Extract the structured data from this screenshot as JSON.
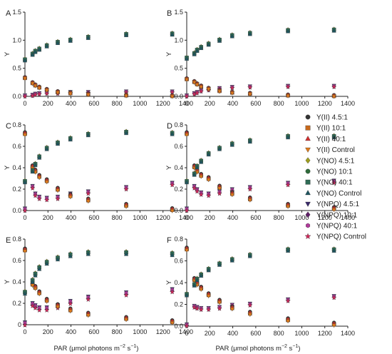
{
  "figure": {
    "x_label_main": "PAR (μmol photons m",
    "x_label_exp1": "−2",
    "x_label_mid": " s",
    "x_label_exp2": "−1",
    "x_label_end": ")"
  },
  "legend": [
    {
      "label": "Y(II) 4.5:1",
      "marker": "circle",
      "color": "#333333"
    },
    {
      "label": "Y(II) 10:1",
      "marker": "square",
      "color": "#C8691C"
    },
    {
      "label": "Y(II) 40:1",
      "marker": "triangle-up",
      "color": "#D32F2F"
    },
    {
      "label": "Y(II) Control",
      "marker": "triangle-down",
      "color": "#E07B1A"
    },
    {
      "label": "Y(NO) 4.5:1",
      "marker": "diamond",
      "color": "#9E9E1E"
    },
    {
      "label": "Y(NO) 10:1",
      "marker": "circle",
      "color": "#2E6B3A"
    },
    {
      "label": "Y(NO) 40:1",
      "marker": "square",
      "color": "#2E6B55"
    },
    {
      "label": "Y(NO) Control",
      "marker": "triangle-up",
      "color": "#1E5560"
    },
    {
      "label": "Y(NPQ) 4.5:1",
      "marker": "triangle-down",
      "color": "#3A2A6B"
    },
    {
      "label": "Y(NPQ) 10:1",
      "marker": "diamond",
      "color": "#5E1E66"
    },
    {
      "label": "Y(NPQ) 40:1",
      "marker": "hexagon",
      "color": "#B03A9A"
    },
    {
      "label": "Y(NPQ) Control",
      "marker": "star",
      "color": "#D0285A"
    }
  ],
  "chart_data": [
    {
      "type": "scatter",
      "panel": "A",
      "xlabel": "",
      "ylabel": "Y",
      "xlim": [
        0,
        1400
      ],
      "ylim": [
        0,
        1.5
      ],
      "xticks": [
        0,
        200,
        400,
        600,
        800,
        1000,
        1200,
        1400
      ],
      "yticks": [
        0.0,
        0.5,
        1.0,
        1.5
      ],
      "ytick_labels": [
        "0.0",
        "0.5",
        "1.0",
        "1.5"
      ],
      "x": [
        0,
        66,
        90,
        125,
        190,
        285,
        395,
        550,
        880,
        1280
      ],
      "groups": [
        {
          "kind": "NO",
          "values": [
            0.65,
            0.75,
            0.8,
            0.84,
            0.9,
            0.96,
            1.0,
            1.05,
            1.1,
            1.11
          ],
          "spread": 0.025
        },
        {
          "kind": "II",
          "values": [
            0.33,
            0.24,
            0.2,
            0.16,
            0.12,
            0.08,
            0.06,
            0.04,
            0.02,
            0.01
          ],
          "spread": 0.02
        },
        {
          "kind": "NPQ",
          "values": [
            0.01,
            0.02,
            0.04,
            0.05,
            0.06,
            0.06,
            0.07,
            0.07,
            0.08,
            0.08
          ],
          "spread": 0.02
        }
      ]
    },
    {
      "type": "scatter",
      "panel": "B",
      "xlabel": "",
      "ylabel": "Y",
      "xlim": [
        0,
        1400
      ],
      "ylim": [
        0,
        1.5
      ],
      "xticks": [
        0,
        200,
        400,
        600,
        800,
        1000,
        1200,
        1400
      ],
      "yticks": [
        0.0,
        0.5,
        1.0,
        1.5
      ],
      "ytick_labels": [
        "0.0",
        "0.5",
        "1.0",
        "1.5"
      ],
      "x": [
        0,
        66,
        90,
        125,
        190,
        285,
        395,
        550,
        880,
        1280
      ],
      "groups": [
        {
          "kind": "NO",
          "values": [
            0.68,
            0.76,
            0.82,
            0.87,
            0.93,
            1.0,
            1.08,
            1.12,
            1.17,
            1.18
          ],
          "spread": 0.025
        },
        {
          "kind": "II",
          "values": [
            0.31,
            0.26,
            0.22,
            0.18,
            0.14,
            0.1,
            0.07,
            0.05,
            0.02,
            0.01
          ],
          "spread": 0.02
        },
        {
          "kind": "NPQ",
          "values": [
            0.01,
            0.05,
            0.07,
            0.1,
            0.12,
            0.14,
            0.16,
            0.17,
            0.18,
            0.18
          ],
          "spread": 0.02
        }
      ]
    },
    {
      "type": "scatter",
      "panel": "C",
      "xlabel": "",
      "ylabel": "Y",
      "xlim": [
        0,
        1400
      ],
      "ylim": [
        0,
        0.8
      ],
      "xticks": [
        0,
        200,
        400,
        600,
        800,
        1000,
        1200,
        1400
      ],
      "yticks": [
        0.0,
        0.2,
        0.4,
        0.6,
        0.8
      ],
      "ytick_labels": [
        "0.0",
        "0.2",
        "0.4",
        "0.6",
        "0.8"
      ],
      "x": [
        0,
        66,
        90,
        125,
        190,
        285,
        395,
        550,
        880,
        1280
      ],
      "groups": [
        {
          "kind": "NO",
          "values": [
            0.27,
            0.37,
            0.43,
            0.5,
            0.58,
            0.63,
            0.67,
            0.71,
            0.73,
            0.72
          ],
          "spread": 0.015
        },
        {
          "kind": "II",
          "values": [
            0.72,
            0.41,
            0.37,
            0.32,
            0.28,
            0.2,
            0.14,
            0.1,
            0.05,
            0.01
          ],
          "spread": 0.02
        },
        {
          "kind": "NPQ",
          "values": [
            0.01,
            0.22,
            0.15,
            0.12,
            0.11,
            0.12,
            0.15,
            0.17,
            0.21,
            0.25
          ],
          "spread": 0.02
        }
      ]
    },
    {
      "type": "scatter",
      "panel": "D",
      "xlabel": "",
      "ylabel": "Y",
      "xlim": [
        0,
        1400
      ],
      "ylim": [
        0,
        0.8
      ],
      "xticks": [
        0,
        200,
        400,
        600,
        800,
        1000,
        1200,
        1400
      ],
      "yticks": [
        0.0,
        0.2,
        0.4,
        0.6,
        0.8
      ],
      "ytick_labels": [
        "0.0",
        "0.2",
        "0.4",
        "0.6",
        "0.8"
      ],
      "x": [
        0,
        66,
        90,
        125,
        190,
        285,
        395,
        550,
        880,
        1280
      ],
      "groups": [
        {
          "kind": "NO",
          "values": [
            0.27,
            0.34,
            0.41,
            0.46,
            0.53,
            0.58,
            0.62,
            0.65,
            0.69,
            0.69
          ],
          "spread": 0.015
        },
        {
          "kind": "II",
          "values": [
            0.72,
            0.41,
            0.37,
            0.33,
            0.3,
            0.22,
            0.16,
            0.11,
            0.05,
            0.02
          ],
          "spread": 0.02
        },
        {
          "kind": "NPQ",
          "values": [
            0.01,
            0.22,
            0.19,
            0.16,
            0.15,
            0.17,
            0.19,
            0.21,
            0.25,
            0.27
          ],
          "spread": 0.02
        }
      ]
    },
    {
      "type": "scatter",
      "panel": "E",
      "xlabel": "PAR",
      "ylabel": "Y",
      "xlim": [
        0,
        1400
      ],
      "ylim": [
        0,
        0.8
      ],
      "xticks": [
        0,
        200,
        400,
        600,
        800,
        1000,
        1200,
        1400
      ],
      "yticks": [
        0.0,
        0.2,
        0.4,
        0.6,
        0.8
      ],
      "ytick_labels": [
        "0",
        "0.2",
        "0.4",
        "0.6",
        "0.8"
      ],
      "x": [
        0,
        66,
        90,
        125,
        190,
        285,
        395,
        550,
        880,
        1280
      ],
      "groups": [
        {
          "kind": "NO",
          "values": [
            0.3,
            0.41,
            0.47,
            0.53,
            0.58,
            0.62,
            0.65,
            0.67,
            0.67,
            0.66
          ],
          "spread": 0.02
        },
        {
          "kind": "II",
          "values": [
            0.7,
            0.38,
            0.35,
            0.3,
            0.23,
            0.18,
            0.14,
            0.1,
            0.06,
            0.03
          ],
          "spread": 0.02
        },
        {
          "kind": "NPQ",
          "values": [
            0.01,
            0.19,
            0.17,
            0.15,
            0.15,
            0.17,
            0.21,
            0.25,
            0.29,
            0.32
          ],
          "spread": 0.025
        }
      ]
    },
    {
      "type": "scatter",
      "panel": "F",
      "xlabel": "PAR",
      "ylabel": "Y",
      "xlim": [
        0,
        1400
      ],
      "ylim": [
        0,
        0.8
      ],
      "xticks": [
        0,
        200,
        400,
        600,
        800,
        1000,
        1200,
        1400
      ],
      "yticks": [
        0.0,
        0.2,
        0.4,
        0.6,
        0.8
      ],
      "ytick_labels": [
        "0.0",
        "0.2",
        "0.4",
        "0.6",
        "0.8"
      ],
      "x": [
        0,
        66,
        90,
        125,
        190,
        285,
        395,
        550,
        880,
        1280
      ],
      "groups": [
        {
          "kind": "NO",
          "values": [
            0.29,
            0.38,
            0.43,
            0.47,
            0.52,
            0.57,
            0.61,
            0.65,
            0.7,
            0.7
          ],
          "spread": 0.015
        },
        {
          "kind": "II",
          "values": [
            0.71,
            0.43,
            0.39,
            0.35,
            0.29,
            0.23,
            0.17,
            0.12,
            0.06,
            0.02
          ],
          "spread": 0.02
        },
        {
          "kind": "NPQ",
          "values": [
            0.01,
            0.18,
            0.17,
            0.16,
            0.16,
            0.17,
            0.19,
            0.2,
            0.24,
            0.27
          ],
          "spread": 0.015
        }
      ]
    }
  ]
}
